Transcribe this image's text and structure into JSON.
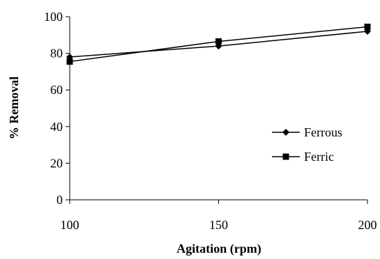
{
  "chart_data": {
    "type": "line",
    "title": "",
    "xlabel": "Agitation (rpm)",
    "ylabel": "% Removal",
    "x": [
      100,
      150,
      200
    ],
    "xlim": [
      100,
      200
    ],
    "ylim": [
      0,
      100
    ],
    "xticks": [
      "100",
      "150",
      "200"
    ],
    "yticks": [
      "0",
      "20",
      "40",
      "60",
      "80",
      "100"
    ],
    "grid": false,
    "legend_position": "right",
    "series": [
      {
        "name": "Ferrous",
        "marker": "diamond",
        "color": "#000000",
        "values": [
          78,
          84,
          92
        ]
      },
      {
        "name": "Ferric",
        "marker": "square",
        "color": "#000000",
        "values": [
          75.5,
          86.5,
          94.5
        ]
      }
    ]
  }
}
